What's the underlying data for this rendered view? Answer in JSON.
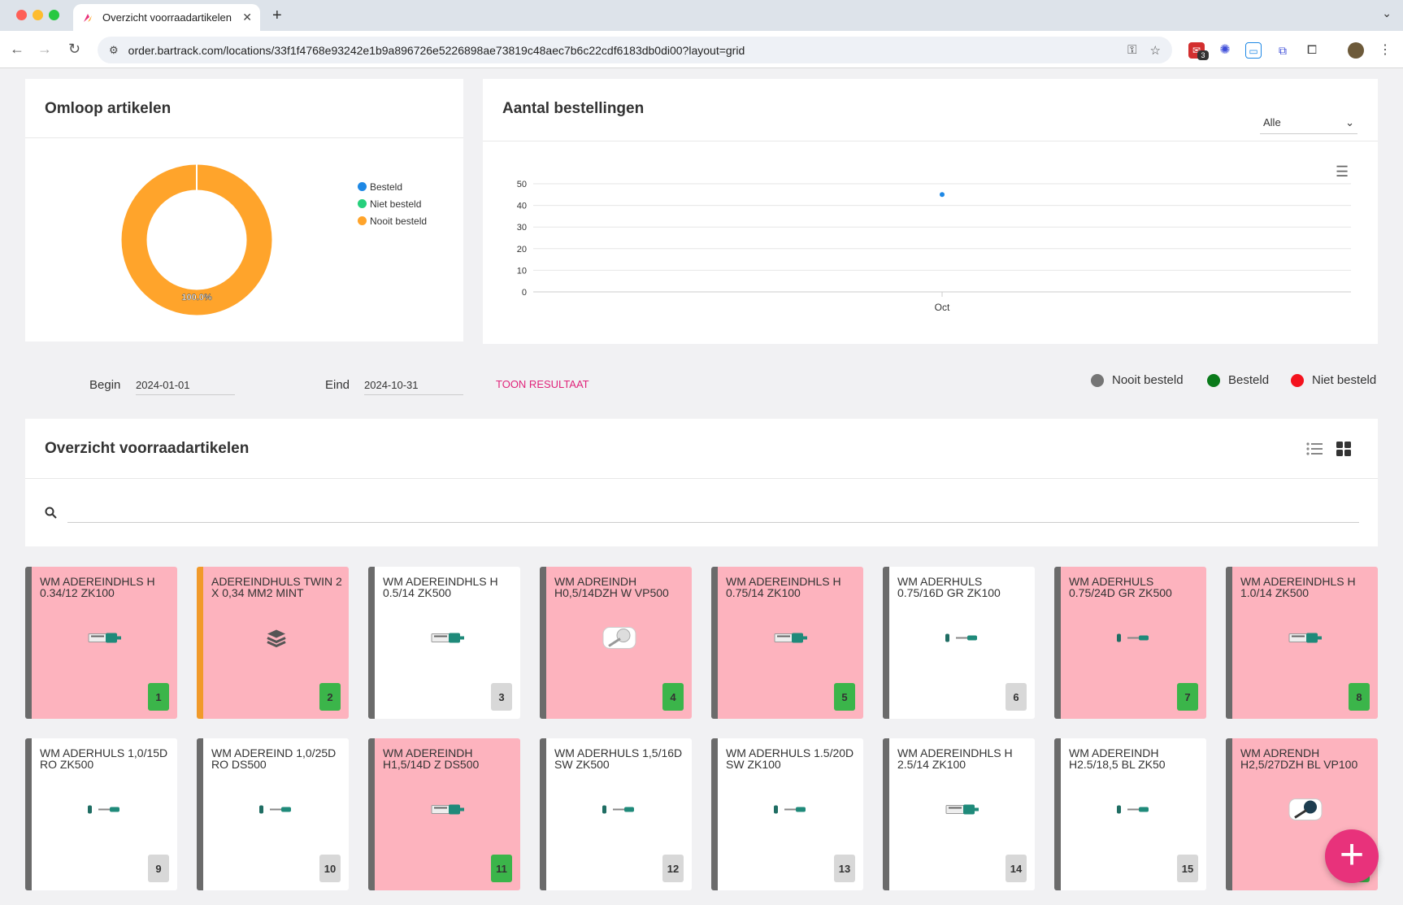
{
  "browser": {
    "tab_title": "Overzicht voorraadartikelen",
    "url": "order.bartrack.com/locations/33f1f4768e93242e1b9a896726e5226898ae73819c48aec7b6c22cdf6183db0di00?layout=grid",
    "extension_badge": "3"
  },
  "omloop": {
    "title": "Omloop artikelen",
    "legend": [
      "Besteld",
      "Niet besteld",
      "Nooit besteld"
    ],
    "legend_colors": [
      "#1e88e5",
      "#26d07c",
      "#ffa42b"
    ],
    "slice_label": "100.0%"
  },
  "bestellingen": {
    "title": "Aantal bestellingen",
    "select_value": "Alle",
    "chart_data": {
      "type": "scatter",
      "x": [
        "Oct"
      ],
      "y": [
        45
      ],
      "ylim": [
        0,
        50
      ],
      "yticks": [
        "50",
        "40",
        "30",
        "20",
        "10",
        "0"
      ],
      "xticks": [
        "Oct"
      ],
      "grid": true
    }
  },
  "chart_omloop": {
    "type": "pie",
    "categories": [
      "Besteld",
      "Niet besteld",
      "Nooit besteld"
    ],
    "values": [
      0,
      0,
      100.0
    ]
  },
  "filter": {
    "begin_label": "Begin",
    "begin_value": "2024-01-01",
    "eind_label": "Eind",
    "eind_value": "2024-10-31",
    "button_label": "TOON RESULTAAT"
  },
  "status_legend": [
    {
      "label": "Nooit besteld",
      "color": "#757575"
    },
    {
      "label": "Besteld",
      "color": "#0a7a1a"
    },
    {
      "label": "Niet besteld",
      "color": "#f4121d"
    }
  ],
  "overzicht": {
    "title": "Overzicht voorraadartikelen"
  },
  "items": [
    {
      "name": "WM ADEREINDHLS H 0.34/12 ZK100",
      "num": "1"
    },
    {
      "name": "ADEREINDHULS TWIN 2 X 0,34 MM2 MINT",
      "num": "2"
    },
    {
      "name": "WM ADEREINDHLS H 0.5/14 ZK500",
      "num": "3"
    },
    {
      "name": "WM ADREINDH H0,5/14DZH W VP500",
      "num": "4"
    },
    {
      "name": "WM ADEREINDHLS H 0.75/14 ZK100",
      "num": "5"
    },
    {
      "name": "WM ADERHULS 0.75/16D GR ZK100",
      "num": "6"
    },
    {
      "name": "WM ADERHULS 0.75/24D GR ZK500",
      "num": "7"
    },
    {
      "name": "WM ADEREINDHLS H 1.0/14 ZK500",
      "num": "8"
    },
    {
      "name": "WM ADERHULS 1,0/15D RO ZK500",
      "num": "9"
    },
    {
      "name": "WM ADEREIND 1,0/25D RO DS500",
      "num": "10"
    },
    {
      "name": "WM ADEREINDH H1,5/14D Z DS500",
      "num": "11"
    },
    {
      "name": "WM ADERHULS 1,5/16D SW ZK500",
      "num": "12"
    },
    {
      "name": "WM ADERHULS 1.5/20D SW ZK100",
      "num": "13"
    },
    {
      "name": "WM ADEREINDHLS H 2.5/14 ZK100",
      "num": "14"
    },
    {
      "name": "WM ADEREINDH H2.5/18,5 BL ZK50",
      "num": "15"
    },
    {
      "name": "WM ADRENDH H2,5/27DZH BL VP100",
      "num": "16"
    }
  ]
}
